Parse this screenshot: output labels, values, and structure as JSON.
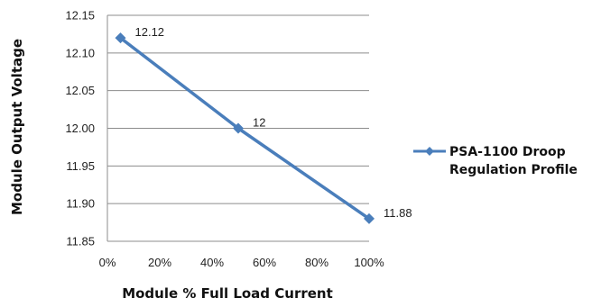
{
  "chart_data": {
    "type": "line",
    "title": "",
    "xlabel": "Module % Full Load Current",
    "ylabel": "Module Output Voltage",
    "x_ticks": [
      "0%",
      "20%",
      "40%",
      "60%",
      "80%",
      "100%"
    ],
    "x_tick_values": [
      0,
      20,
      40,
      60,
      80,
      100
    ],
    "y_ticks": [
      "11.85",
      "11.90",
      "11.95",
      "12.00",
      "12.05",
      "12.10",
      "12.15"
    ],
    "y_tick_values": [
      11.85,
      11.9,
      11.95,
      12.0,
      12.05,
      12.1,
      12.15
    ],
    "xlim": [
      0,
      100
    ],
    "ylim": [
      11.85,
      12.15
    ],
    "grid": "horizontal",
    "legend_position": "right",
    "series": [
      {
        "name": "PSA-1100 Droop Regulation Profile",
        "name_lines": [
          "PSA-1100 Droop",
          "Regulation Profile"
        ],
        "x": [
          5,
          50,
          100
        ],
        "y": [
          12.12,
          12.0,
          11.88
        ],
        "data_labels": [
          "12.12",
          "12",
          "11.88"
        ],
        "color": "#4a7ebb",
        "marker": "diamond"
      }
    ]
  }
}
